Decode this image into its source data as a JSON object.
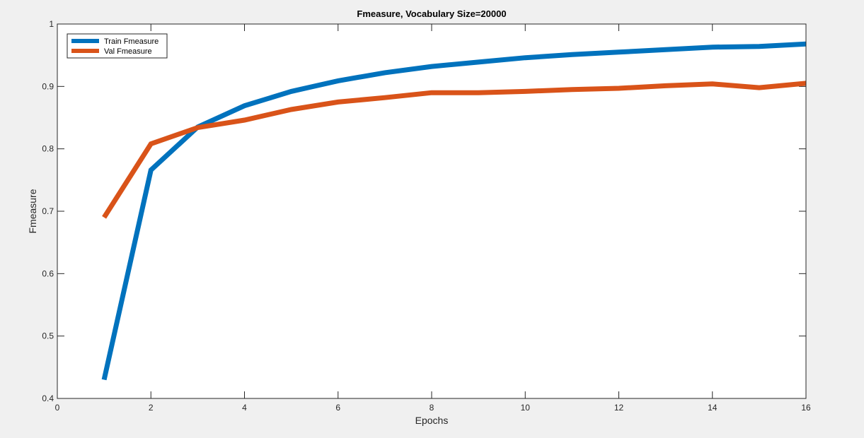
{
  "chart_data": {
    "type": "line",
    "title": "Fmeasure, Vocabulary Size=20000",
    "xlabel": "Epochs",
    "ylabel": "Fmeasure",
    "xlim": [
      0,
      16
    ],
    "ylim": [
      0.4,
      1
    ],
    "xticks": [
      0,
      2,
      4,
      6,
      8,
      10,
      12,
      14,
      16
    ],
    "yticks": [
      0.4,
      0.5,
      0.6,
      0.7,
      0.8,
      0.9,
      1
    ],
    "xtick_labels": [
      "0",
      "2",
      "4",
      "6",
      "8",
      "10",
      "12",
      "14",
      "16"
    ],
    "ytick_labels": [
      "0.4",
      "0.5",
      "0.6",
      "0.7",
      "0.8",
      "0.9",
      "1"
    ],
    "grid": false,
    "legend_position": "top-left",
    "series": [
      {
        "name": "Train Fmeasure",
        "color": "#0072bd",
        "x": [
          1,
          2,
          3,
          4,
          5,
          6,
          7,
          8,
          9,
          10,
          11,
          12,
          13,
          14,
          15,
          16
        ],
        "y": [
          0.43,
          0.766,
          0.835,
          0.869,
          0.892,
          0.909,
          0.922,
          0.932,
          0.939,
          0.946,
          0.951,
          0.955,
          0.959,
          0.963,
          0.964,
          0.968
        ]
      },
      {
        "name": "Val Fmeasure",
        "color": "#d95319",
        "x": [
          1,
          2,
          3,
          4,
          5,
          6,
          7,
          8,
          9,
          10,
          11,
          12,
          13,
          14,
          15,
          16
        ],
        "y": [
          0.69,
          0.808,
          0.834,
          0.846,
          0.863,
          0.875,
          0.882,
          0.89,
          0.89,
          0.892,
          0.895,
          0.897,
          0.901,
          0.904,
          0.898,
          0.905
        ]
      }
    ]
  }
}
